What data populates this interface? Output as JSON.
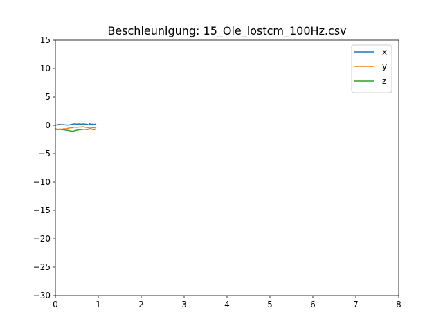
{
  "chart_data": {
    "type": "line",
    "title": "Beschleunigung: 15_Ole_lostcm_100Hz.csv",
    "xlabel": "",
    "ylabel": "",
    "xlim": [
      0,
      8
    ],
    "ylim": [
      -30,
      15
    ],
    "xticks": [
      0,
      1,
      2,
      3,
      4,
      5,
      6,
      7,
      8
    ],
    "yticks": [
      15,
      10,
      5,
      0,
      -5,
      -10,
      -15,
      -20,
      -25,
      -30
    ],
    "xtick_labels": [
      "0",
      "1",
      "2",
      "3",
      "4",
      "5",
      "6",
      "7",
      "8"
    ],
    "ytick_labels": [
      "15",
      "10",
      "5",
      "0",
      "−5",
      "−10",
      "−15",
      "−20",
      "−25",
      "−30"
    ],
    "grid": false,
    "legend_position": "top-right",
    "series": [
      {
        "name": "x",
        "color": "#1f77b4",
        "x": [
          0.0,
          0.05,
          0.1,
          0.15,
          0.2,
          0.25,
          0.3,
          0.35,
          0.4,
          0.45,
          0.5,
          0.55,
          0.6,
          0.65,
          0.7,
          0.75,
          0.78,
          0.8,
          0.83,
          0.86,
          0.9,
          0.93
        ],
        "y": [
          0.0,
          0.1,
          0.15,
          0.1,
          0.1,
          0.05,
          0.05,
          0.1,
          0.2,
          0.25,
          0.2,
          0.25,
          0.2,
          0.25,
          0.2,
          0.15,
          0.05,
          0.3,
          0.1,
          0.2,
          0.15,
          0.2
        ]
      },
      {
        "name": "y",
        "color": "#ff7f0e",
        "x": [
          0.0,
          0.05,
          0.1,
          0.15,
          0.2,
          0.25,
          0.3,
          0.35,
          0.4,
          0.45,
          0.5,
          0.55,
          0.6,
          0.65,
          0.7,
          0.75,
          0.8,
          0.85,
          0.9,
          0.93
        ],
        "y": [
          -0.6,
          -0.7,
          -0.65,
          -0.7,
          -0.6,
          -0.65,
          -0.5,
          -0.45,
          -0.4,
          -0.3,
          -0.35,
          -0.3,
          -0.3,
          -0.25,
          -0.35,
          -0.4,
          -0.5,
          -0.45,
          -0.4,
          -0.45
        ]
      },
      {
        "name": "z",
        "color": "#2ca02c",
        "x": [
          0.0,
          0.05,
          0.1,
          0.15,
          0.2,
          0.25,
          0.3,
          0.35,
          0.4,
          0.45,
          0.5,
          0.55,
          0.6,
          0.65,
          0.7,
          0.75,
          0.8,
          0.85,
          0.9,
          0.93
        ],
        "y": [
          -0.7,
          -0.75,
          -0.7,
          -0.75,
          -0.8,
          -0.85,
          -0.9,
          -1.0,
          -1.05,
          -0.95,
          -0.85,
          -0.8,
          -0.75,
          -0.7,
          -0.7,
          -0.75,
          -0.65,
          -0.7,
          -0.75,
          -0.7
        ]
      }
    ]
  }
}
